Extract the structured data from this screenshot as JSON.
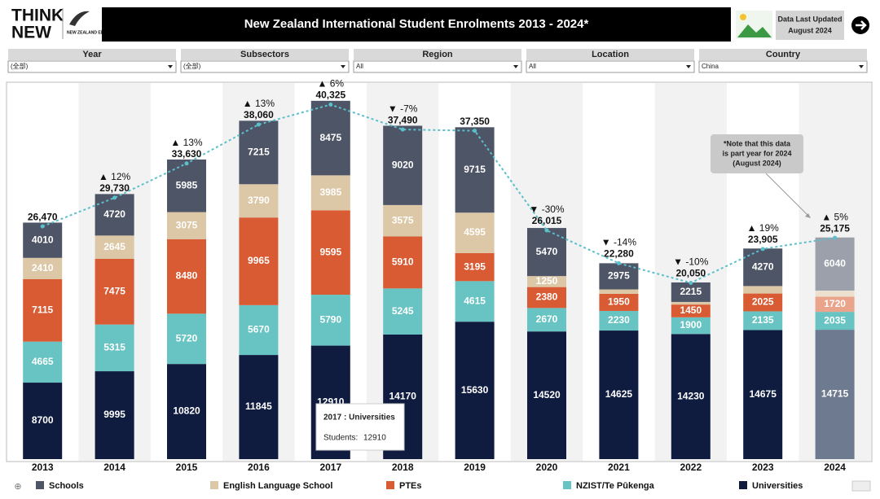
{
  "header": {
    "logo": [
      "THINK",
      "NEW"
    ],
    "logo_sub": "NEW ZEALAND EDUCATION",
    "title": "New Zealand International Student Enrolments 2013 - 2024*",
    "updated": [
      "Data Last Updated",
      "August 2024"
    ]
  },
  "filters": [
    {
      "label": "Year",
      "value": "(全部)"
    },
    {
      "label": "Subsectors",
      "value": "(全部)"
    },
    {
      "label": "Region",
      "value": "All"
    },
    {
      "label": "Location",
      "value": "All"
    },
    {
      "label": "Country",
      "value": "China"
    }
  ],
  "chart_data": {
    "type": "stacked_bar",
    "categories": [
      "2013",
      "2014",
      "2015",
      "2016",
      "2017",
      "2018",
      "2019",
      "2020",
      "2021",
      "2022",
      "2023",
      "2024"
    ],
    "part_year": "2024",
    "ylim": [
      0,
      42500
    ],
    "series": [
      {
        "name": "Universities",
        "color": "#0f1c40",
        "faded_color": "#6e7a90",
        "values": [
          8700,
          9995,
          10820,
          11845,
          12910,
          14170,
          15630,
          14520,
          14625,
          14230,
          14675,
          14715
        ]
      },
      {
        "name": "NZIST/Te Pūkenga",
        "color": "#68c4c3",
        "faded_color": "#68c4c3",
        "values": [
          4665,
          5315,
          5720,
          5670,
          5790,
          5245,
          4615,
          2670,
          2230,
          1900,
          2135,
          2035
        ]
      },
      {
        "name": "PTEs",
        "color": "#d95b33",
        "faded_color": "#eba48c",
        "values": [
          7115,
          7475,
          8480,
          9965,
          9595,
          5910,
          3195,
          2380,
          1950,
          1450,
          2025,
          1720
        ]
      },
      {
        "name": "English Language School",
        "color": "#dcc7a6",
        "faded_color": "#ece1cf",
        "values": [
          2410,
          2645,
          3075,
          3790,
          3985,
          3575,
          4595,
          1250,
          500,
          300,
          850,
          700
        ]
      },
      {
        "name": "Schools",
        "color": "#4e5566",
        "faded_color": "#9ba0aa",
        "values": [
          4010,
          4720,
          5985,
          7215,
          8475,
          9020,
          9715,
          5470,
          2975,
          2215,
          4270,
          6040
        ]
      }
    ],
    "legend_order": [
      4,
      3,
      2,
      1,
      0
    ],
    "totals": {
      "color": "#5bbfcc",
      "values": [
        26470,
        29730,
        33630,
        38060,
        40325,
        37490,
        37350,
        26015,
        22280,
        20050,
        23905,
        25175
      ],
      "value_labels": [
        "26,470",
        "29,730",
        "33,630",
        "38,060",
        "40,325",
        "37,490",
        "37,350",
        "26,015",
        "22,280",
        "20,050",
        "23,905",
        "25,175"
      ]
    },
    "change": {
      "values": [
        null,
        12,
        13,
        13,
        6,
        -7,
        null,
        -30,
        -14,
        -10,
        19,
        5
      ],
      "value_labels": [
        null,
        "▲ 12%",
        "▲ 13%",
        "▲ 13%",
        "▲ 6%",
        "▼ -7%",
        null,
        "▼ -30%",
        "▼ -14%",
        "▼ -10%",
        "▲ 19%",
        "▲ 5%"
      ]
    },
    "tooltip": {
      "title": "2017 : Universities",
      "label": "Students:",
      "value": 12910
    },
    "note": [
      "*Note that this data",
      "is part year for 2024",
      "(August 2024)"
    ]
  }
}
